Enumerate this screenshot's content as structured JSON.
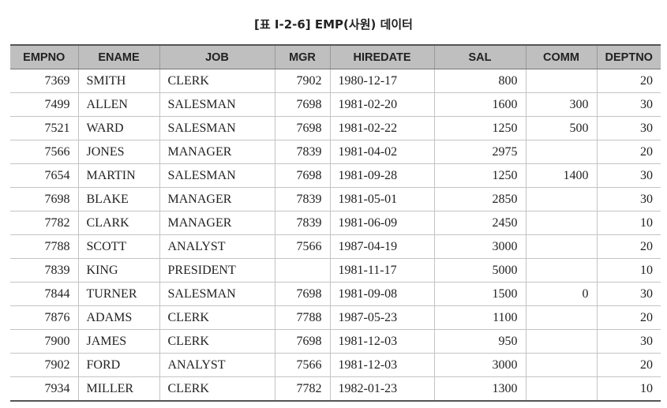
{
  "caption": "[표 Ⅰ-2-6] EMP(사원) 데이터",
  "columns": [
    "EMPNO",
    "ENAME",
    "JOB",
    "MGR",
    "HIREDATE",
    "SAL",
    "COMM",
    "DEPTNO"
  ],
  "rows": [
    [
      "7369",
      "SMITH",
      "CLERK",
      "7902",
      "1980-12-17",
      "800",
      "",
      "20"
    ],
    [
      "7499",
      "ALLEN",
      "SALESMAN",
      "7698",
      "1981-02-20",
      "1600",
      "300",
      "30"
    ],
    [
      "7521",
      "WARD",
      "SALESMAN",
      "7698",
      "1981-02-22",
      "1250",
      "500",
      "30"
    ],
    [
      "7566",
      "JONES",
      "MANAGER",
      "7839",
      "1981-04-02",
      "2975",
      "",
      "20"
    ],
    [
      "7654",
      "MARTIN",
      "SALESMAN",
      "7698",
      "1981-09-28",
      "1250",
      "1400",
      "30"
    ],
    [
      "7698",
      "BLAKE",
      "MANAGER",
      "7839",
      "1981-05-01",
      "2850",
      "",
      "30"
    ],
    [
      "7782",
      "CLARK",
      "MANAGER",
      "7839",
      "1981-06-09",
      "2450",
      "",
      "10"
    ],
    [
      "7788",
      "SCOTT",
      "ANALYST",
      "7566",
      "1987-04-19",
      "3000",
      "",
      "20"
    ],
    [
      "7839",
      "KING",
      "PRESIDENT",
      "",
      "1981-11-17",
      "5000",
      "",
      "10"
    ],
    [
      "7844",
      "TURNER",
      "SALESMAN",
      "7698",
      "1981-09-08",
      "1500",
      "0",
      "30"
    ],
    [
      "7876",
      "ADAMS",
      "CLERK",
      "7788",
      "1987-05-23",
      "1100",
      "",
      "20"
    ],
    [
      "7900",
      "JAMES",
      "CLERK",
      "7698",
      "1981-12-03",
      "950",
      "",
      "30"
    ],
    [
      "7902",
      "FORD",
      "ANALYST",
      "7566",
      "1981-12-03",
      "3000",
      "",
      "20"
    ],
    [
      "7934",
      "MILLER",
      "CLERK",
      "7782",
      "1982-01-23",
      "1300",
      "",
      "10"
    ]
  ]
}
